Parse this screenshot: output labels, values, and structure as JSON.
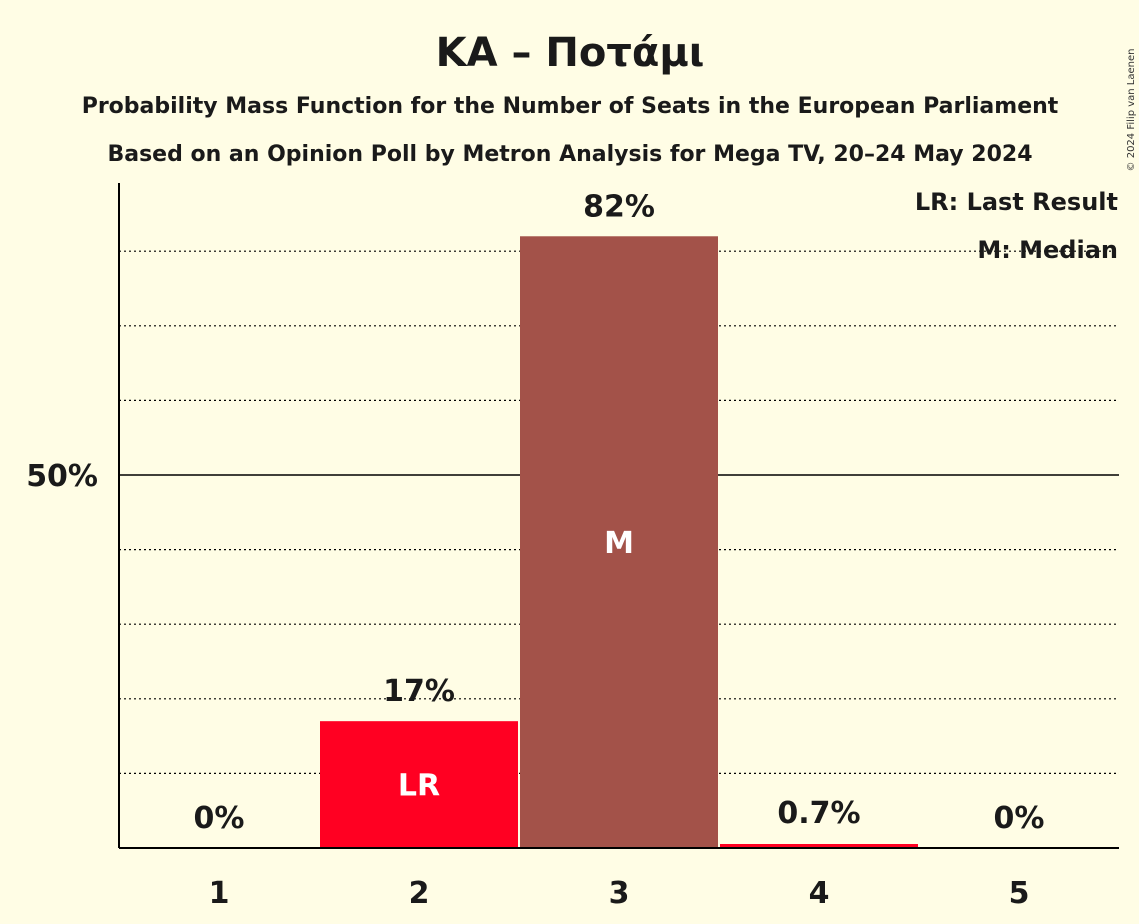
{
  "copyright": "© 2024 Filip van Laenen",
  "chart_data": {
    "type": "bar",
    "title": "ΚΑ – Ποτάμι",
    "subtitle": "Probability Mass Function for the Number of Seats in the European Parliament",
    "subtitle2": "Based on an Opinion Poll by Metron Analysis for Mega TV, 20–24 May 2024",
    "categories": [
      "1",
      "2",
      "3",
      "4",
      "5"
    ],
    "values": [
      0,
      17,
      82,
      0.7,
      0
    ],
    "value_labels": [
      "0%",
      "17%",
      "82%",
      "0.7%",
      "0%"
    ],
    "bar_markers": [
      "",
      "LR",
      "M",
      "",
      ""
    ],
    "bar_colors": [
      "#A35249",
      "#FF0022",
      "#A35249",
      "#FF0022",
      "#A35249"
    ],
    "ylim": [
      0,
      90
    ],
    "yticks": [
      {
        "value": 50,
        "label": "50%"
      }
    ],
    "gridlines": [
      10,
      20,
      30,
      40,
      60,
      70,
      80
    ],
    "legend": {
      "position": "top-right",
      "items": [
        "LR: Last Result",
        "M: Median"
      ]
    }
  }
}
